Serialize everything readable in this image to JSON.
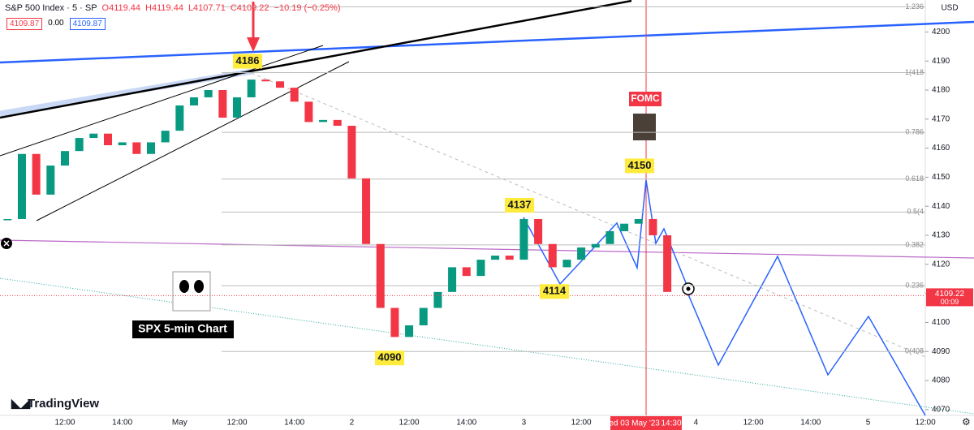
{
  "header": {
    "symbol": "S&P 500 Index · 5 · SP",
    "ohlc": [
      "O4119.44",
      "H4119.44",
      "L4107.71",
      "C4109.22",
      "−10.19 (−0.25%)"
    ],
    "bid": "4109.87",
    "spread": "0.00",
    "ask": "4109.87"
  },
  "chart_data": {
    "type": "candlestick",
    "currency": "USD",
    "categories": [
      null,
      null,
      null,
      null,
      "12:00",
      null,
      null,
      null,
      "14:00",
      null,
      null,
      null,
      "May",
      null,
      null,
      null,
      "12:00",
      null,
      null,
      null,
      "14:00",
      null,
      null,
      null,
      "2",
      null,
      null,
      null,
      "12:00",
      null,
      null,
      null,
      "14:00",
      null,
      null,
      null,
      "3",
      null,
      null,
      null,
      "12:00",
      null,
      null,
      null,
      null,
      null,
      null,
      null,
      "4",
      null,
      null,
      null,
      "12:00",
      null,
      null,
      null,
      "14:00",
      null,
      null,
      null,
      "5",
      null,
      null,
      null,
      "12:00"
    ],
    "series": [
      {
        "values": [
          4135.6,
          4158,
          4144,
          4154,
          4159,
          4163.5,
          4165,
          4161,
          4162,
          4158,
          4162,
          4166,
          4174.7,
          4177.5,
          4180,
          4170.5,
          4177.5,
          4183.6,
          4183,
          4180.8,
          4176,
          4169,
          4169.7,
          4167.7,
          4149.6,
          4127,
          4105,
          4095,
          4099,
          4105,
          4110.5,
          4119,
          4116,
          4121.6,
          4123,
          4121.6,
          4135.6,
          4127,
          4119,
          4121.6,
          4125.8,
          4127,
          4131.4,
          4134,
          4135.6,
          4130,
          4110.5,
          null,
          null,
          null,
          null,
          null,
          null,
          null,
          null,
          null,
          null,
          null,
          null,
          null,
          null,
          null,
          null,
          null,
          null
        ]
      }
    ],
    "colors": {
      "up": "#089981",
      "down": "#f23645"
    },
    "ylim": [
      4068,
      4211
    ],
    "yticks": [
      4070,
      4080,
      4090,
      4100,
      4110,
      4120,
      4130,
      4140,
      4150,
      4160,
      4170,
      4180,
      4190,
      4200
    ],
    "last_price": 4109.22,
    "countdown": "00:09",
    "crosshair_date": "Wed 03 May '23",
    "crosshair_time": "14:30",
    "annotations": [
      4186,
      4150,
      4137,
      4114,
      4090
    ],
    "fib_levels": [
      {
        "value": 1.236,
        "label": "1.236"
      },
      {
        "value": 1,
        "label": "1(418"
      },
      {
        "value": 0.786,
        "label": "0.786"
      },
      {
        "value": 0.618,
        "label": "0.618"
      },
      {
        "value": 0.5,
        "label": "0.5(4"
      },
      {
        "value": 0.382,
        "label": "0.382"
      },
      {
        "value": 0.236,
        "label": "0.236"
      },
      {
        "value": 0,
        "label": "0(408"
      }
    ],
    "event_label": "FOMC",
    "chart_label": "SPX 5-min Chart",
    "brand": "TradingView"
  }
}
